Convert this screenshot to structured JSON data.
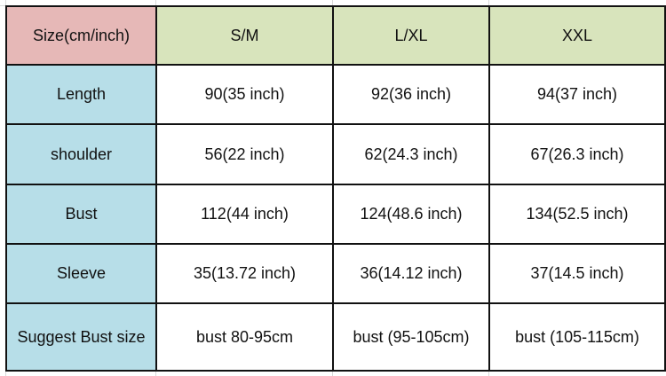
{
  "table": {
    "corner_label": "Size(cm/inch)",
    "columns": [
      "S/M",
      "L/XL",
      "XXL"
    ],
    "rows": [
      {
        "label": "Length",
        "values": [
          "90(35 inch)",
          "92(36 inch)",
          "94(37 inch)"
        ]
      },
      {
        "label": "shoulder",
        "values": [
          "56(22 inch)",
          "62(24.3 inch)",
          "67(26.3 inch)"
        ]
      },
      {
        "label": "Bust",
        "values": [
          "112(44 inch)",
          "124(48.6 inch)",
          "134(52.5 inch)"
        ]
      },
      {
        "label": "Sleeve",
        "values": [
          "35(13.72 inch)",
          "36(14.12 inch)",
          "37(14.5 inch)"
        ]
      },
      {
        "label": "Suggest Bust size",
        "values": [
          "bust 80-95cm",
          "bust (95-105cm)",
          "bust (105-115cm)"
        ]
      }
    ]
  },
  "colors": {
    "corner": "#e6b8b7",
    "column_header": "#d8e4bc",
    "row_header": "#b7dee8"
  }
}
